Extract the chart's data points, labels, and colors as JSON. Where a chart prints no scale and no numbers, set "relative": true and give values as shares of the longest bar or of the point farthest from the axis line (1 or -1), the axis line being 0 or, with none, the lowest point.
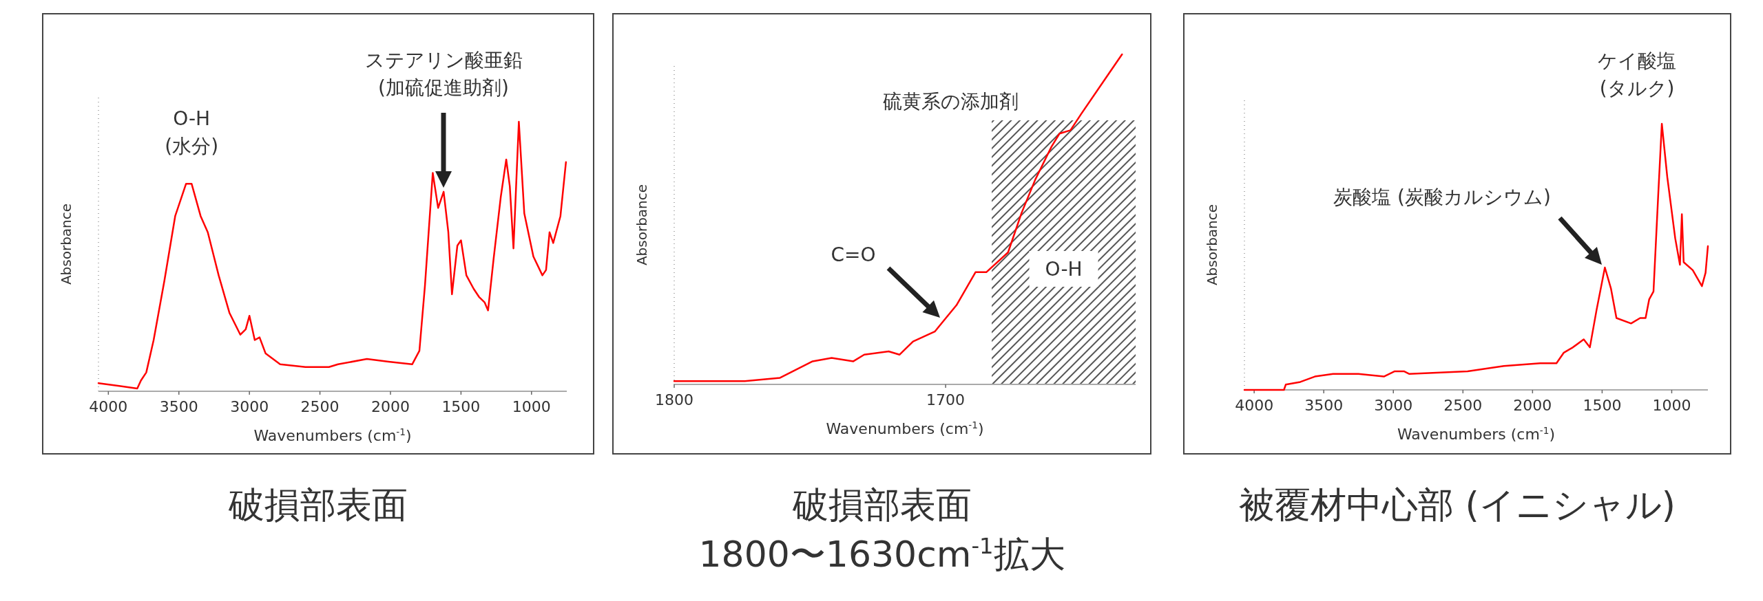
{
  "chart_data": [
    {
      "type": "line",
      "title": "破損部表面",
      "xlabel": "Wavenumbers (cm$^{-1}$)",
      "ylabel": "Absorbance",
      "relative": true,
      "color": "#ff0000",
      "xlim": [
        4070,
        750
      ],
      "xticks": [
        4000,
        3500,
        3000,
        2500,
        2000,
        1500,
        1000
      ],
      "x": [
        4070,
        3923,
        3795,
        3769,
        3731,
        3679,
        3603,
        3526,
        3449,
        3410,
        3346,
        3295,
        3218,
        3141,
        3064,
        3026,
        3000,
        2962,
        2928,
        2885,
        2782,
        2603,
        2436,
        2372,
        2167,
        2013,
        1846,
        1795,
        1756,
        1700,
        1662,
        1623,
        1590,
        1564,
        1526,
        1500,
        1462,
        1410,
        1372,
        1333,
        1308,
        1269,
        1218,
        1179,
        1154,
        1128,
        1090,
        1051,
        987,
        923,
        897,
        872,
        846,
        795,
        756
      ],
      "values": [
        0.03,
        0.02,
        0.01,
        0.04,
        0.07,
        0.19,
        0.41,
        0.65,
        0.77,
        0.77,
        0.65,
        0.59,
        0.43,
        0.29,
        0.21,
        0.23,
        0.28,
        0.19,
        0.2,
        0.14,
        0.1,
        0.09,
        0.09,
        0.1,
        0.12,
        0.11,
        0.1,
        0.15,
        0.39,
        0.81,
        0.68,
        0.74,
        0.59,
        0.36,
        0.54,
        0.56,
        0.43,
        0.38,
        0.35,
        0.33,
        0.3,
        0.49,
        0.72,
        0.86,
        0.76,
        0.53,
        1.0,
        0.66,
        0.5,
        0.43,
        0.45,
        0.59,
        0.55,
        0.65,
        0.85
      ],
      "annotations": [
        {
          "text": "O-H\n(水分)",
          "x": 3410,
          "y": 0.77
        },
        "ステアリン酸亜鉛\n(加硫促進助剤)"
      ]
    },
    {
      "type": "line",
      "title": "破損部表面\n1800〜1630cm$^{-1}$拡大",
      "xlabel": "Wavenumbers (cm$^{-1}$)",
      "ylabel": "Absorbance",
      "relative": true,
      "color": "#ff0000",
      "xlim": [
        1800,
        1630
      ],
      "xticks": [
        1800,
        1700
      ],
      "x": [
        1800,
        1774,
        1761,
        1749,
        1742,
        1734,
        1730,
        1721,
        1717,
        1712,
        1704,
        1701,
        1696,
        1689,
        1685,
        1677,
        1672,
        1667,
        1661,
        1658,
        1654,
        1650,
        1640,
        1635
      ],
      "values": [
        0.01,
        0.01,
        0.02,
        0.07,
        0.08,
        0.07,
        0.09,
        0.1,
        0.09,
        0.13,
        0.16,
        0.19,
        0.24,
        0.34,
        0.34,
        0.4,
        0.52,
        0.62,
        0.72,
        0.76,
        0.77,
        0.82,
        0.94,
        1.0
      ],
      "bands": [
        {
          "axis": "x",
          "from": 1683,
          "to": 1630,
          "label": "O-H",
          "color": "#555555"
        }
      ],
      "annotations": [
        "C=O",
        "硫黄系の添加剤"
      ]
    },
    {
      "type": "line",
      "title": "被覆材中心部 (イニシャル)",
      "xlabel": "Wavenumbers (cm$^{-1}$)",
      "ylabel": "Absorbance",
      "relative": true,
      "color": "#ff0000",
      "xlim": [
        4070,
        740
      ],
      "xticks": [
        4000,
        3500,
        3000,
        2500,
        2000,
        1500,
        1000
      ],
      "x": [
        4070,
        3786,
        3773,
        3668,
        3564,
        3433,
        3251,
        3068,
        2990,
        2924,
        2885,
        2467,
        2206,
        1945,
        1828,
        1775,
        1710,
        1632,
        1588,
        1540,
        1480,
        1436,
        1397,
        1292,
        1227,
        1188,
        1162,
        1131,
        1097,
        1071,
        1032,
        975,
        941,
        927,
        914,
        849,
        783,
        757,
        740
      ],
      "values": [
        0.0,
        0.0,
        0.02,
        0.03,
        0.05,
        0.06,
        0.06,
        0.05,
        0.07,
        0.07,
        0.06,
        0.07,
        0.09,
        0.1,
        0.1,
        0.14,
        0.16,
        0.19,
        0.16,
        0.3,
        0.46,
        0.38,
        0.27,
        0.25,
        0.27,
        0.27,
        0.34,
        0.37,
        0.73,
        1.0,
        0.8,
        0.57,
        0.47,
        0.66,
        0.48,
        0.45,
        0.39,
        0.44,
        0.54
      ],
      "annotations": [
        {
          "text": "ケイ酸塩\n(タルク)",
          "x": 1071,
          "y": 1.0
        },
        "炭酸塩 (炭酸カルシウム)"
      ]
    }
  ]
}
